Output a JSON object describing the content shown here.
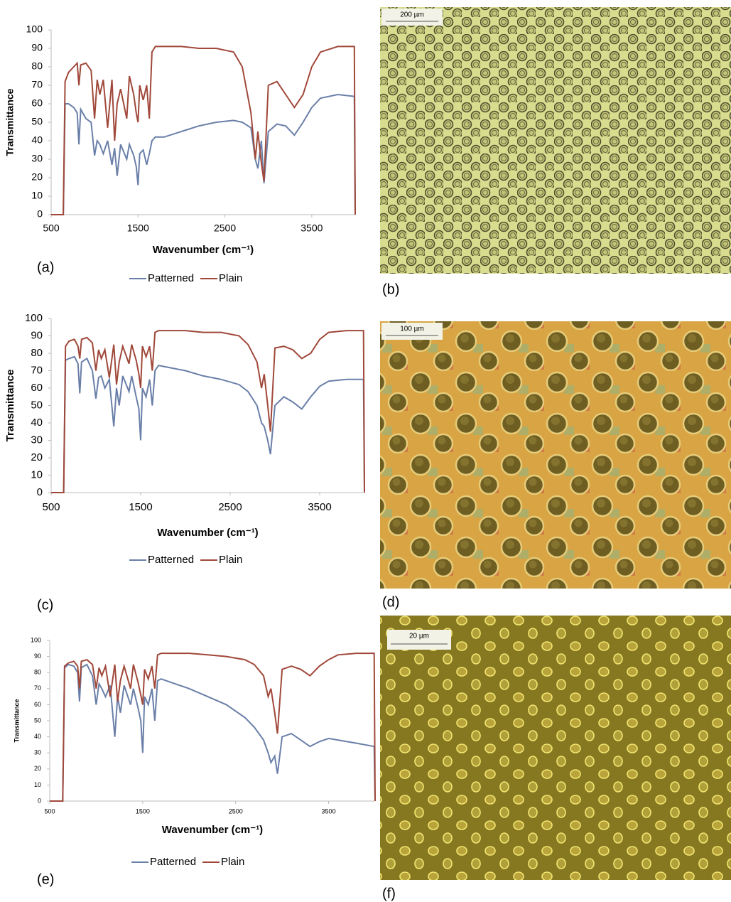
{
  "chart_data": [
    {
      "type": "line",
      "panel_label": "(a)",
      "y_label": "Transmittance",
      "x_label": "Wavenumber (cm⁻¹)",
      "xlim": [
        500,
        4000
      ],
      "xticks": [
        500,
        1500,
        2500,
        3500
      ],
      "ylim": [
        0,
        100
      ],
      "yticks": [
        0,
        10,
        20,
        30,
        40,
        50,
        60,
        70,
        80,
        90,
        100
      ],
      "grid": false,
      "x": [
        500,
        640,
        660,
        700,
        760,
        800,
        820,
        840,
        900,
        960,
        1000,
        1030,
        1060,
        1100,
        1150,
        1200,
        1230,
        1260,
        1300,
        1370,
        1400,
        1450,
        1480,
        1500,
        1520,
        1560,
        1600,
        1630,
        1660,
        1700,
        1800,
        2000,
        2200,
        2400,
        2600,
        2700,
        2800,
        2850,
        2880,
        2920,
        2950,
        3000,
        3100,
        3200,
        3300,
        3400,
        3500,
        3600,
        3800,
        3990,
        4000
      ],
      "series": [
        {
          "name": "Patterned",
          "color": "#6a7fa8",
          "values": [
            0,
            0,
            60,
            60,
            58,
            55,
            38,
            57,
            52,
            50,
            32,
            40,
            38,
            33,
            40,
            27,
            36,
            21,
            38,
            30,
            38,
            32,
            26,
            16,
            33,
            35,
            27,
            33,
            40,
            42,
            42,
            45,
            48,
            50,
            51,
            50,
            47,
            30,
            25,
            40,
            17,
            45,
            49,
            48,
            43,
            50,
            58,
            63,
            65,
            64,
            0
          ]
        },
        {
          "name": "Plain",
          "color": "#a0483a",
          "values": [
            0,
            0,
            72,
            77,
            80,
            82,
            70,
            81,
            82,
            78,
            52,
            73,
            65,
            73,
            47,
            73,
            40,
            60,
            68,
            52,
            75,
            65,
            55,
            50,
            70,
            62,
            70,
            52,
            88,
            91,
            91,
            91,
            90,
            90,
            88,
            80,
            55,
            30,
            45,
            28,
            18,
            70,
            72,
            65,
            58,
            65,
            80,
            88,
            91,
            91,
            0
          ]
        }
      ]
    },
    {
      "type": "line",
      "panel_label": "(c)",
      "y_label": "Transmittance",
      "x_label": "Wavenumber (cm⁻¹)",
      "xlim": [
        500,
        4000
      ],
      "xticks": [
        500,
        1500,
        2500,
        3500
      ],
      "ylim": [
        0,
        100
      ],
      "yticks": [
        0,
        10,
        20,
        30,
        40,
        50,
        60,
        70,
        80,
        90,
        100
      ],
      "grid": false,
      "x": [
        500,
        640,
        660,
        700,
        760,
        800,
        820,
        840,
        900,
        960,
        1000,
        1030,
        1060,
        1100,
        1150,
        1200,
        1230,
        1260,
        1300,
        1370,
        1400,
        1450,
        1480,
        1500,
        1520,
        1560,
        1600,
        1630,
        1660,
        1700,
        1800,
        2000,
        2200,
        2400,
        2600,
        2700,
        2800,
        2850,
        2880,
        2920,
        2950,
        3000,
        3100,
        3200,
        3300,
        3400,
        3500,
        3600,
        3800,
        3990,
        4000
      ],
      "series": [
        {
          "name": "Patterned",
          "color": "#6a7fa8",
          "values": [
            0,
            0,
            76,
            77,
            78,
            74,
            57,
            75,
            77,
            70,
            54,
            66,
            67,
            60,
            65,
            38,
            60,
            50,
            67,
            58,
            67,
            55,
            48,
            30,
            60,
            55,
            65,
            50,
            70,
            73,
            72,
            70,
            67,
            65,
            62,
            58,
            50,
            40,
            38,
            30,
            22,
            50,
            55,
            52,
            48,
            55,
            61,
            64,
            65,
            65,
            0
          ]
        },
        {
          "name": "Plain",
          "color": "#a0483a",
          "values": [
            0,
            0,
            84,
            87,
            88,
            84,
            77,
            88,
            89,
            86,
            70,
            82,
            77,
            82,
            66,
            85,
            62,
            75,
            84,
            74,
            85,
            76,
            68,
            60,
            84,
            78,
            84,
            70,
            92,
            93,
            93,
            93,
            92,
            92,
            90,
            85,
            75,
            60,
            68,
            50,
            35,
            83,
            84,
            82,
            77,
            80,
            88,
            92,
            93,
            93,
            0
          ]
        }
      ]
    },
    {
      "type": "line",
      "panel_label": "(e)",
      "y_label": "Transmittance",
      "x_label": "Wavenumber (cm⁻¹)",
      "xlim": [
        500,
        4000
      ],
      "xticks": [
        500,
        1500,
        2500,
        3500
      ],
      "ylim": [
        0,
        100
      ],
      "yticks": [
        0,
        10,
        20,
        30,
        40,
        50,
        60,
        70,
        80,
        90,
        100
      ],
      "grid": false,
      "x": [
        500,
        640,
        660,
        700,
        760,
        800,
        820,
        840,
        900,
        960,
        1000,
        1030,
        1060,
        1100,
        1150,
        1200,
        1230,
        1260,
        1300,
        1370,
        1400,
        1450,
        1480,
        1500,
        1520,
        1560,
        1600,
        1630,
        1660,
        1700,
        1800,
        2000,
        2200,
        2400,
        2600,
        2700,
        2800,
        2850,
        2880,
        2920,
        2950,
        3000,
        3100,
        3200,
        3300,
        3400,
        3500,
        3600,
        3800,
        3990,
        4000
      ],
      "series": [
        {
          "name": "Patterned",
          "color": "#6a7fa8",
          "values": [
            0,
            0,
            83,
            85,
            84,
            80,
            62,
            83,
            85,
            78,
            60,
            73,
            70,
            65,
            72,
            40,
            65,
            55,
            72,
            60,
            70,
            58,
            50,
            30,
            65,
            60,
            70,
            50,
            75,
            76,
            74,
            70,
            65,
            60,
            52,
            46,
            38,
            30,
            24,
            28,
            17,
            40,
            42,
            38,
            34,
            37,
            39,
            38,
            36,
            34,
            0
          ]
        },
        {
          "name": "Plain",
          "color": "#a0483a",
          "values": [
            0,
            0,
            84,
            86,
            87,
            84,
            70,
            87,
            88,
            85,
            70,
            83,
            78,
            84,
            65,
            85,
            62,
            75,
            84,
            70,
            85,
            74,
            66,
            60,
            82,
            76,
            84,
            70,
            91,
            92,
            92,
            92,
            91,
            90,
            88,
            85,
            78,
            65,
            70,
            55,
            42,
            82,
            84,
            82,
            78,
            84,
            88,
            91,
            92,
            92,
            0
          ]
        }
      ]
    }
  ],
  "images": [
    {
      "panel_label": "(b)",
      "scale_bar": "200 µm"
    },
    {
      "panel_label": "(d)",
      "scale_bar": "100 µm"
    },
    {
      "panel_label": "(f)",
      "scale_bar": "20 µm"
    }
  ]
}
